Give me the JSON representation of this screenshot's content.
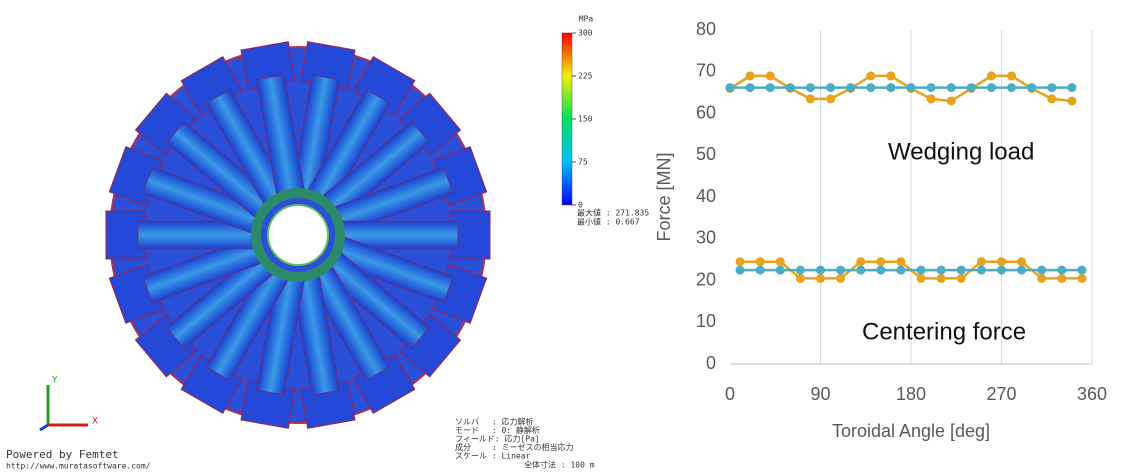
{
  "simulation": {
    "colorbar": {
      "unit": "MPa",
      "ticks": [
        300,
        225,
        150,
        75,
        0
      ]
    },
    "max_label": "最大値 : 271.835",
    "min_label": "最小値 : 0.667",
    "axis_y": "Y",
    "axis_x": "X",
    "powered_by": "Powered by Femtet",
    "url": "http://www.muratasoftware.com/",
    "info": [
      "ソルバ　 : 応力解析",
      "モード　 : 0: 静解析",
      "フィールド: 応力[Pa]",
      "成分　　 : ミーゼスの相当応力",
      "スケール : Linear"
    ],
    "scale": "全体寸法 : 100 m"
  },
  "chart_data": {
    "type": "line",
    "x_label": "Toroidal Angle [deg]",
    "y_label": "Force [MN]",
    "annotations": [
      "Wedging load",
      "Centering force"
    ],
    "xlim": [
      0,
      360
    ],
    "xticks": [
      0,
      90,
      180,
      270,
      360
    ],
    "ylim": [
      0,
      80
    ],
    "yticks": [
      0,
      10,
      20,
      30,
      40,
      50,
      60,
      70,
      80
    ],
    "grid": "x",
    "series": [
      {
        "color": "#e8a21b",
        "x": [
          0,
          20,
          40,
          60,
          80,
          100,
          120,
          140,
          160,
          180,
          200,
          220,
          240,
          260,
          280,
          300,
          320,
          340
        ],
        "values": [
          66,
          69,
          69,
          66,
          63.5,
          63.5,
          66,
          69,
          69,
          66,
          63.5,
          63,
          66,
          69,
          69,
          66,
          63.5,
          63
        ]
      },
      {
        "color": "#4bacc6",
        "x": [
          0,
          20,
          40,
          60,
          80,
          100,
          120,
          140,
          160,
          180,
          200,
          220,
          240,
          260,
          280,
          300,
          320,
          340
        ],
        "values": [
          66.2,
          66.2,
          66.2,
          66.2,
          66.2,
          66.2,
          66.2,
          66.2,
          66.2,
          66.2,
          66.2,
          66.2,
          66.2,
          66.2,
          66.2,
          66.2,
          66.2,
          66.2
        ]
      },
      {
        "color": "#e8a21b",
        "x": [
          10,
          30,
          50,
          70,
          90,
          110,
          130,
          150,
          170,
          190,
          210,
          230,
          250,
          270,
          290,
          310,
          330,
          350
        ],
        "values": [
          24.5,
          24.5,
          24.5,
          20.5,
          20.5,
          20.5,
          24.5,
          24.5,
          24.5,
          20.5,
          20.5,
          20.5,
          24.5,
          24.5,
          24.5,
          20.5,
          20.5,
          20.5
        ]
      },
      {
        "color": "#4bacc6",
        "x": [
          10,
          30,
          50,
          70,
          90,
          110,
          130,
          150,
          170,
          190,
          210,
          230,
          250,
          270,
          290,
          310,
          330,
          350
        ],
        "values": [
          22.5,
          22.5,
          22.5,
          22.5,
          22.5,
          22.5,
          22.5,
          22.5,
          22.5,
          22.5,
          22.5,
          22.5,
          22.5,
          22.5,
          22.5,
          22.5,
          22.5,
          22.5
        ]
      }
    ]
  }
}
